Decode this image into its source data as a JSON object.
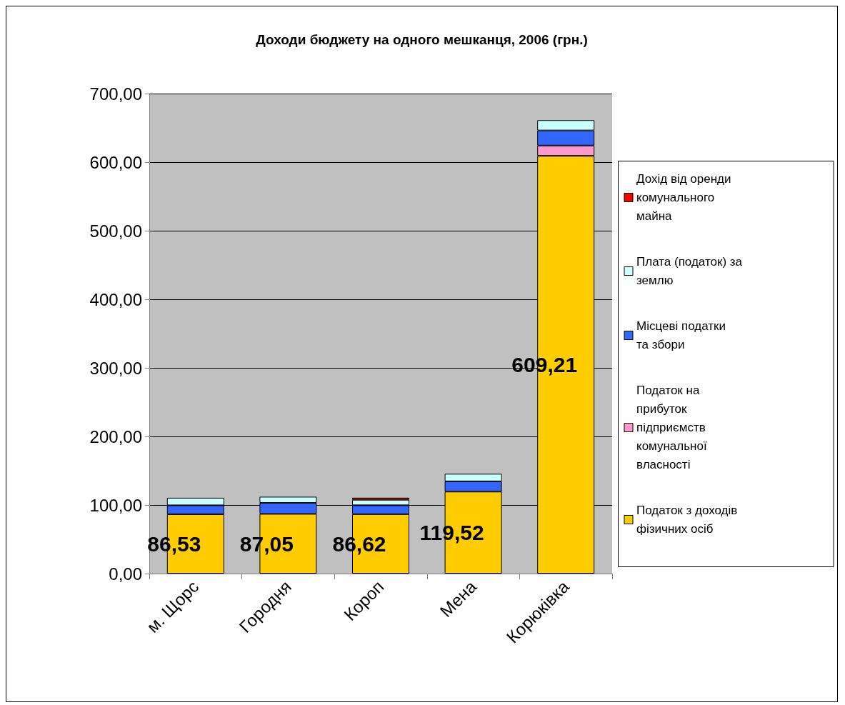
{
  "chart_data": {
    "type": "bar",
    "title": "Доходи бюджету на одного мешканця, 2006 (грн.)",
    "categories": [
      "м. Щорс",
      "Городня",
      "Короп",
      "Мена",
      "Корюківка"
    ],
    "stacked": true,
    "grid": "y",
    "legend": "right",
    "ylim": [
      0,
      700
    ],
    "yticks": [
      {
        "value": 0,
        "label": "0,00"
      },
      {
        "value": 100,
        "label": "100,00"
      },
      {
        "value": 200,
        "label": "200,00"
      },
      {
        "value": 300,
        "label": "300,00"
      },
      {
        "value": 400,
        "label": "400,00"
      },
      {
        "value": 500,
        "label": "500,00"
      },
      {
        "value": 600,
        "label": "600,00"
      },
      {
        "value": 700,
        "label": "700,00"
      }
    ],
    "series": [
      {
        "name": "Податок з доходів фізичних осіб",
        "color": "#ffcc00",
        "values": [
          86.53,
          87.05,
          86.62,
          119.52,
          609.21
        ],
        "value_labels": [
          "86,53",
          "87,05",
          "86,62",
          "119,52",
          "609,21"
        ]
      },
      {
        "name": "Податок на прибуток підприємств комунальної власності",
        "color": "#ff99cc",
        "values": [
          null,
          null,
          null,
          null,
          15
        ]
      },
      {
        "name": "Місцеві податки та збори",
        "color": "#3366ff",
        "values": [
          13,
          16,
          13,
          15,
          22
        ]
      },
      {
        "name": "Плата (податок) за землю",
        "color": "#ccffff",
        "values": [
          11,
          9,
          8,
          11,
          15
        ]
      },
      {
        "name": "Дохід від оренди комунального майна",
        "color": "#ff0000",
        "values": [
          null,
          null,
          3,
          null,
          null
        ]
      }
    ]
  }
}
